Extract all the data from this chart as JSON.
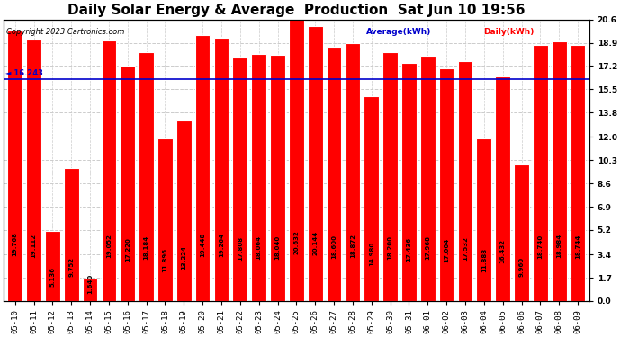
{
  "title": "Daily Solar Energy & Average  Production  Sat Jun 10 19:56",
  "copyright": "Copyright 2023 Cartronics.com",
  "legend_average": "Average(kWh)",
  "legend_daily": "Daily(kWh)",
  "categories": [
    "05-10",
    "05-11",
    "05-12",
    "05-13",
    "05-14",
    "05-15",
    "05-16",
    "05-17",
    "05-18",
    "05-19",
    "05-20",
    "05-21",
    "05-22",
    "05-23",
    "05-24",
    "05-25",
    "05-26",
    "05-27",
    "05-28",
    "05-29",
    "05-30",
    "05-31",
    "06-01",
    "06-02",
    "06-03",
    "06-04",
    "06-05",
    "06-06",
    "06-07",
    "06-08",
    "06-09"
  ],
  "values": [
    19.768,
    19.112,
    5.136,
    9.752,
    1.64,
    19.052,
    17.22,
    18.184,
    11.896,
    13.224,
    19.448,
    19.264,
    17.808,
    18.064,
    18.04,
    20.632,
    20.144,
    18.6,
    18.872,
    14.98,
    18.2,
    17.436,
    17.968,
    17.004,
    17.532,
    11.888,
    16.432,
    9.96,
    18.74,
    18.984,
    18.744
  ],
  "average_value": 16.243,
  "bar_color": "#ff0000",
  "average_line_color": "#0000cc",
  "background_color": "#ffffff",
  "plot_bg_color": "#ffffff",
  "bar_edge_color": "#ffffff",
  "yticks": [
    0.0,
    1.7,
    3.4,
    5.2,
    6.9,
    8.6,
    10.3,
    12.0,
    13.8,
    15.5,
    17.2,
    18.9,
    20.6
  ],
  "ylim": [
    0.0,
    20.6
  ],
  "title_fontsize": 11,
  "axis_fontsize": 6.5,
  "value_fontsize": 5.0,
  "avg_label": "◄ 16.243"
}
